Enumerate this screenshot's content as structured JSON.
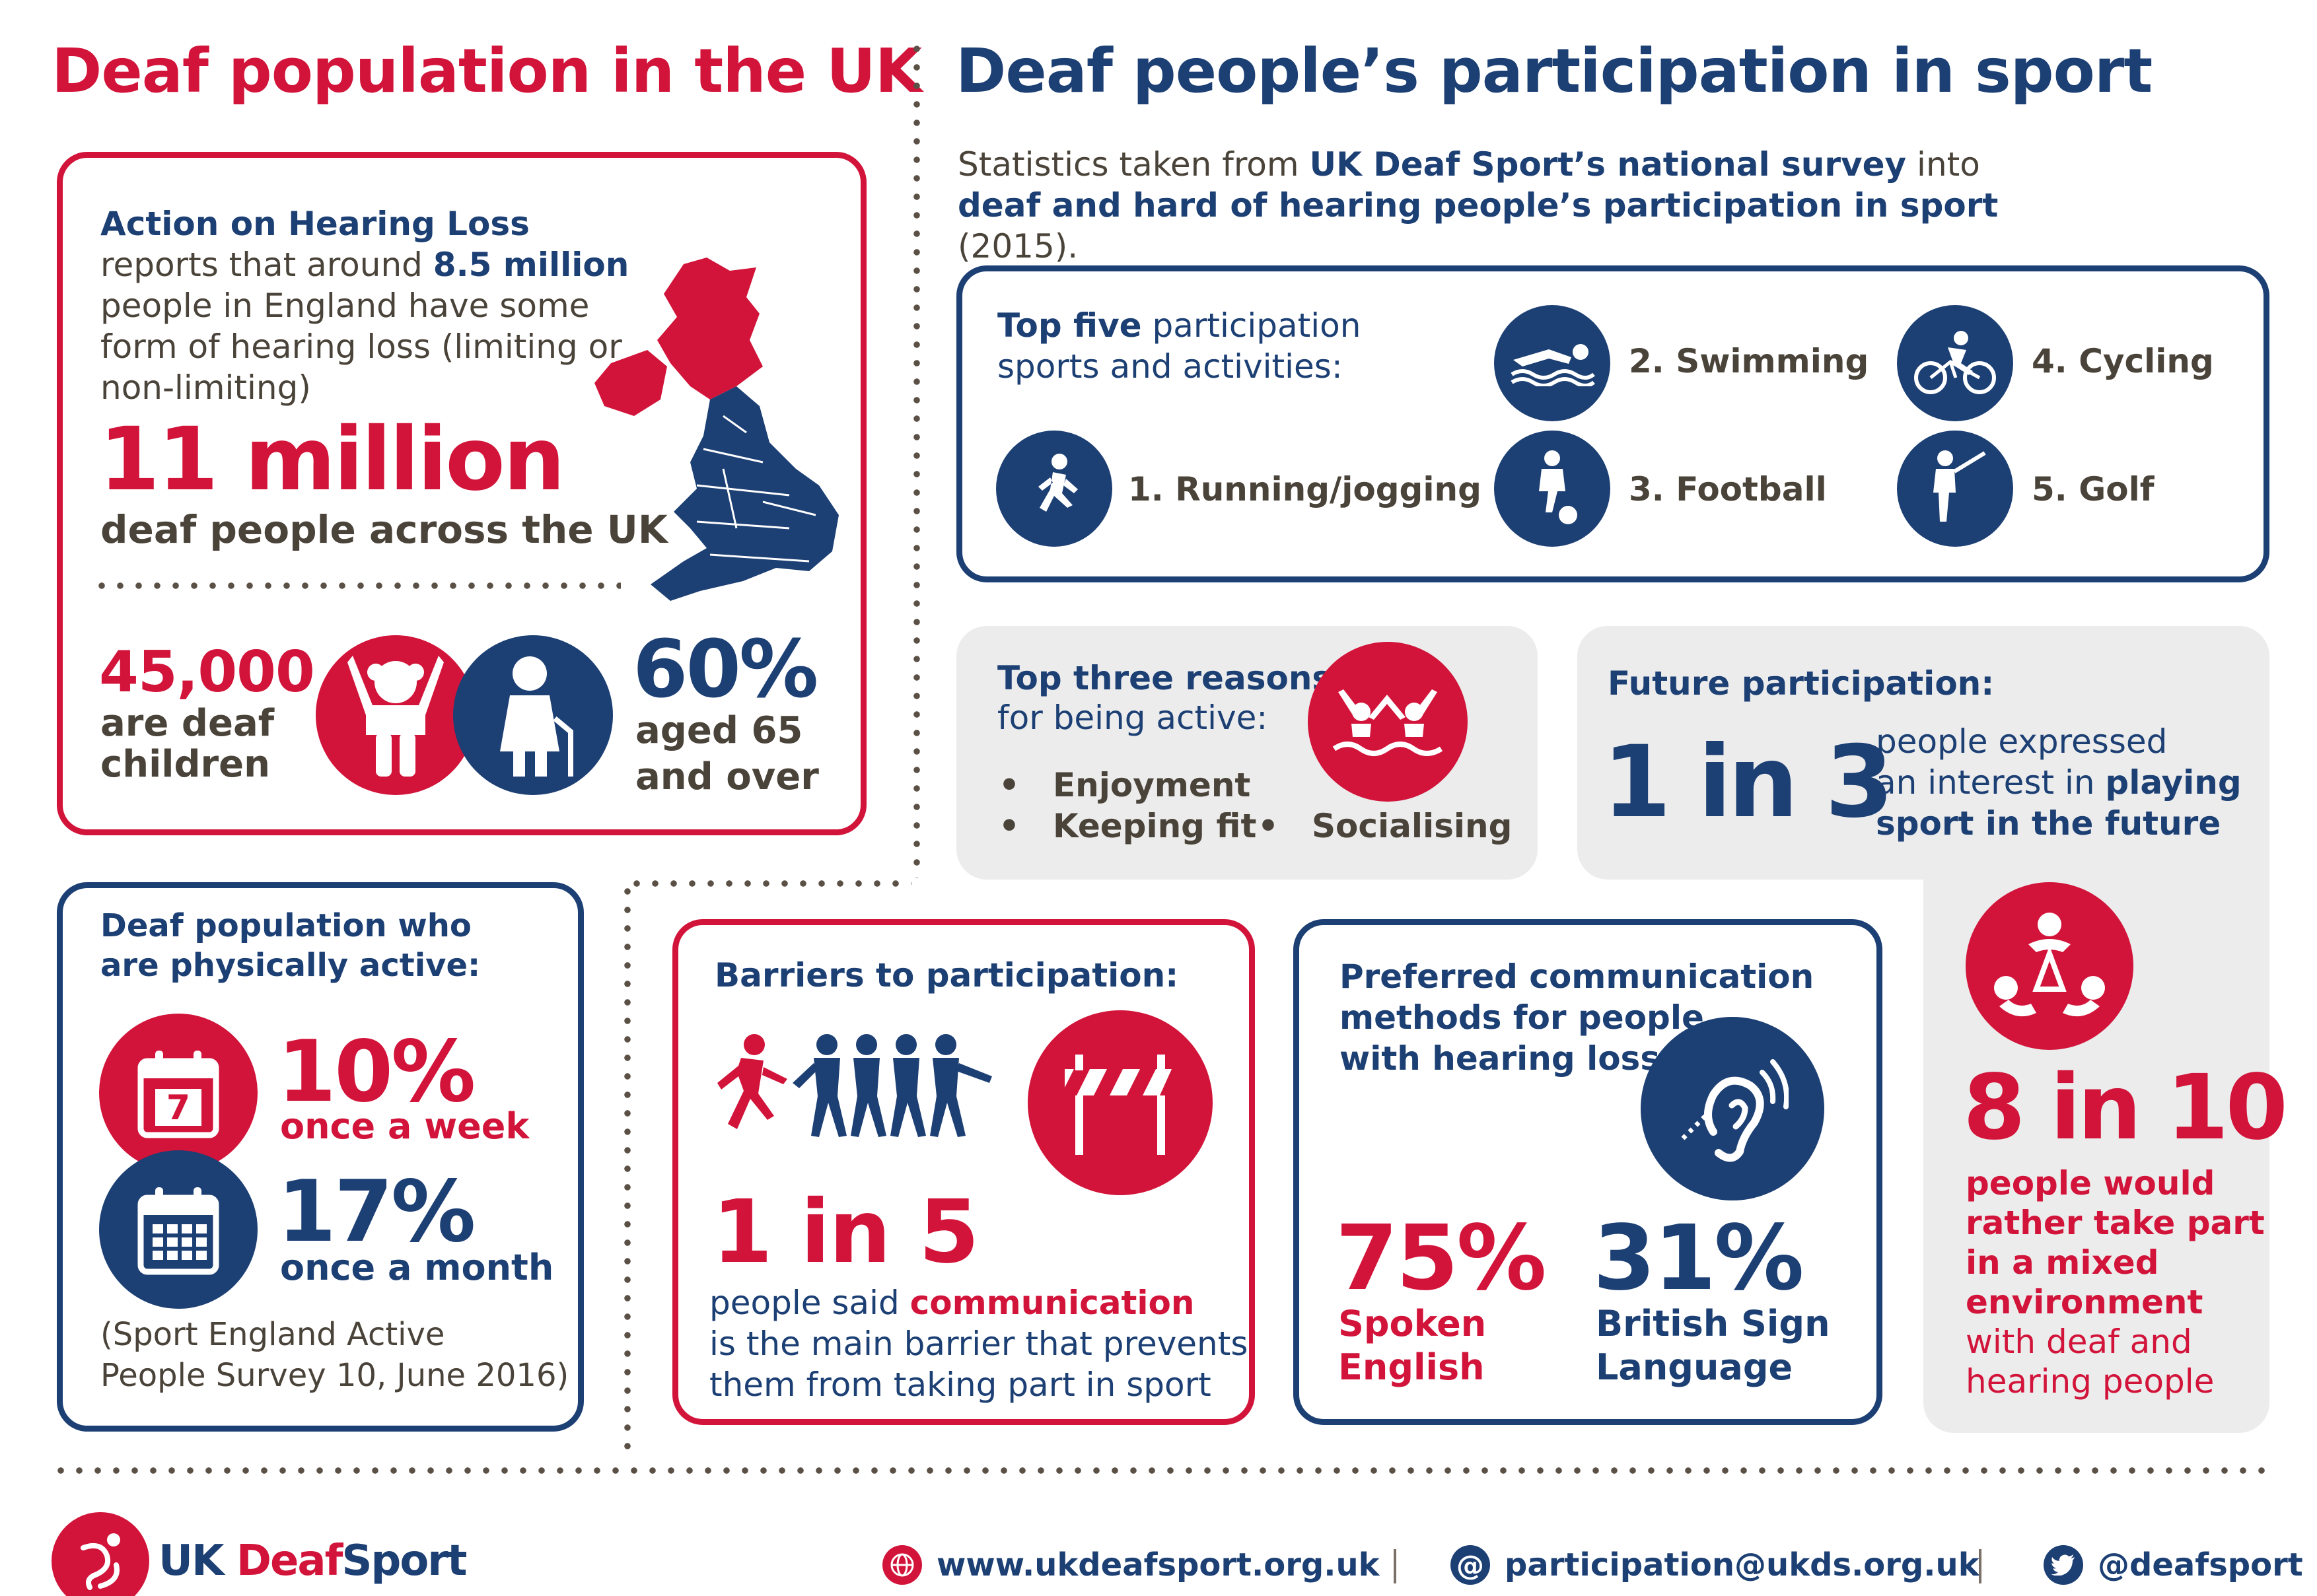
{
  "left": {
    "title": "Deaf population in the UK",
    "intro": {
      "source": "Action on Hearing Loss",
      "text1": " reports that around ",
      "count": "8.5 million",
      "text2": " people in England have some form of hearing loss (limiting or non-limiting)"
    },
    "headline_value": "11 million",
    "headline_label": "deaf people across the UK",
    "children_value": "45,000",
    "children_label1": "are deaf",
    "children_label2": "children",
    "aged_value": "60%",
    "aged_label1": "aged 65",
    "aged_label2": "and over"
  },
  "active": {
    "title1": "Deaf population who",
    "title2": "are physically active:",
    "week_value": "10%",
    "week_label": "once a week",
    "calendar_day": "7",
    "month_value": "17%",
    "month_label": "once a month",
    "source1": "(Sport England Active",
    "source2": "People Survey 10, June 2016)"
  },
  "right": {
    "title": "Deaf people’s participation in sport",
    "stats_intro": {
      "pre": "Statistics taken from ",
      "source": "UK Deaf Sport’s national survey",
      "mid": " into",
      "topic": "deaf and hard of hearing people’s participation in sport",
      "year": " (2015)."
    },
    "top_five": {
      "title_bold": "Top five",
      "title_rest": " participation",
      "title_line2": "sports and activities:",
      "items": [
        "1. Running/jogging",
        "2. Swimming",
        "3. Football",
        "4. Cycling",
        "5. Golf"
      ]
    },
    "reasons": {
      "title1": "Top three reasons",
      "title2": "for being active:",
      "items": [
        "Enjoyment",
        "Keeping fit",
        "Socialising"
      ]
    },
    "future": {
      "title": "Future participation:",
      "value": "1 in 3",
      "text1": "people expressed",
      "text2": "an interest in ",
      "text2b": "playing",
      "text3": "sport in the future"
    },
    "mixed": {
      "value": "8 in 10",
      "lines_bold": [
        "people would",
        "rather take part",
        "in a mixed",
        "environment"
      ],
      "lines": [
        "with deaf and",
        "hearing people"
      ]
    },
    "barriers": {
      "title": "Barriers to participation:",
      "value": "1 in 5",
      "text1": "people said ",
      "text1b": "communication",
      "text2": "is the main barrier that prevents",
      "text3": "them from taking part in sport"
    },
    "communication": {
      "title1": "Preferred communication",
      "title2": "methods for people",
      "title3": "with hearing loss:",
      "spoken_value": "75%",
      "spoken_label1": "Spoken",
      "spoken_label2": "English",
      "bsl_value": "31%",
      "bsl_label1": "British Sign",
      "bsl_label2": "Language"
    }
  },
  "footer": {
    "logo_text_a": "UK ",
    "logo_text_b": "Deaf",
    "logo_text_c": "Sport",
    "website": "www.ukdeafsport.org.uk",
    "email": "participation@ukds.org.uk",
    "twitter": "@deafsport"
  },
  "colors": {
    "red": "#d2143a",
    "blue": "#1c3f74",
    "brown": "#4a4339",
    "grey": "#ececec"
  }
}
